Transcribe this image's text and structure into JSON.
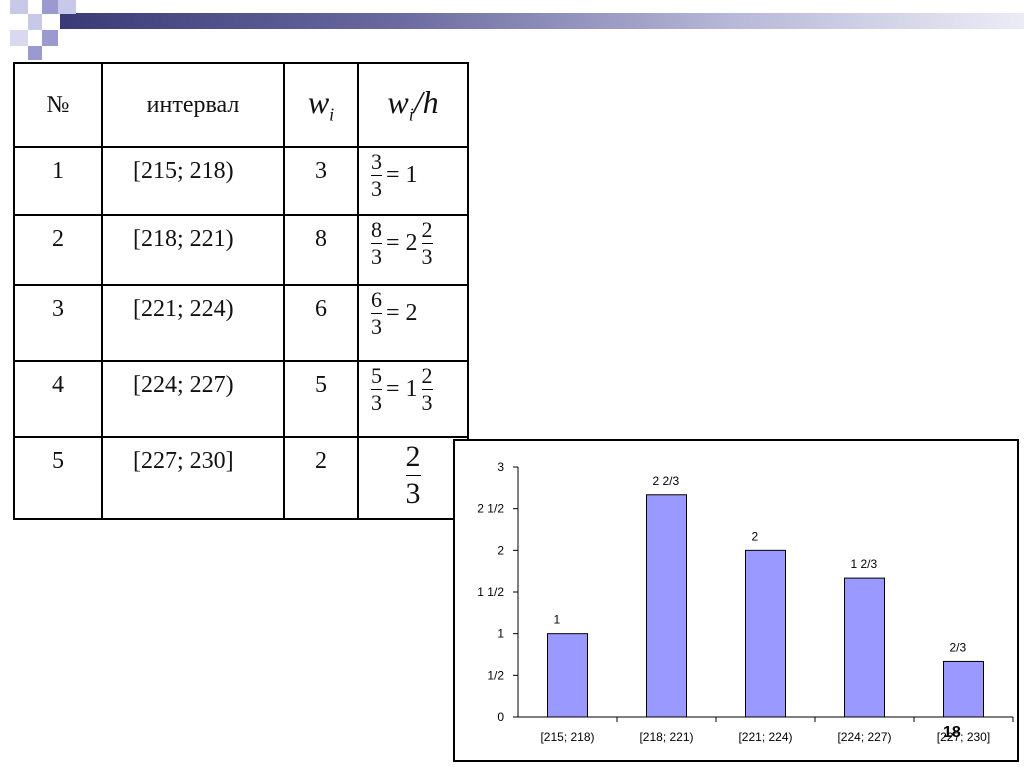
{
  "table": {
    "headers": {
      "num": "№",
      "interval": "интервал",
      "wi": "w",
      "wi_sub": "i",
      "wih_w": "w",
      "wih_sub": "i",
      "wih_h": "/h"
    },
    "rows": [
      {
        "num": "1",
        "interval": "[215; 218)",
        "wi": "3",
        "f_num": "3",
        "f_den": "3",
        "eq": "= 1",
        "mixed_whole": "",
        "mixed_num": "",
        "mixed_den": ""
      },
      {
        "num": "2",
        "interval": "[218; 221)",
        "wi": "8",
        "f_num": "8",
        "f_den": "3",
        "eq": "= 2",
        "mixed_whole": "",
        "mixed_num": "2",
        "mixed_den": "3"
      },
      {
        "num": "3",
        "interval": "[221; 224)",
        "wi": "6",
        "f_num": "6",
        "f_den": "3",
        "eq": "= 2",
        "mixed_whole": "",
        "mixed_num": "",
        "mixed_den": ""
      },
      {
        "num": "4",
        "interval": "[224; 227)",
        "wi": "5",
        "f_num": "5",
        "f_den": "3",
        "eq": "= 1",
        "mixed_whole": "",
        "mixed_num": "2",
        "mixed_den": "3"
      },
      {
        "num": "5",
        "interval": "[227; 230]",
        "wi": "2",
        "f_num": "2",
        "f_den": "3",
        "eq": "",
        "mixed_whole": "",
        "mixed_num": "",
        "mixed_den": ""
      }
    ]
  },
  "chart_data": {
    "type": "bar",
    "categories": [
      "[215; 218)",
      "[218; 221)",
      "[221; 224)",
      "[224; 227)",
      "[227; 230]"
    ],
    "values": [
      1,
      2.6667,
      2,
      1.6667,
      0.6667
    ],
    "data_labels": [
      "1",
      "2 2/3",
      "2",
      "1 2/3",
      "2/3"
    ],
    "y_ticks": [
      0,
      0.5,
      1,
      1.5,
      2,
      2.5,
      3
    ],
    "y_tick_labels": [
      "0",
      "1/2",
      "1",
      "1 1/2",
      "2",
      "2 1/2",
      "3"
    ],
    "ylim": [
      0,
      3
    ],
    "bar_color": "#9999ff",
    "grid": false,
    "title": "",
    "xlabel": "",
    "ylabel": ""
  },
  "page_number": "18",
  "colors": {
    "header_dark": "#3a3a78",
    "header_light": "#ececf6",
    "square_a": "#9a9ad0",
    "square_b": "#c8c8e8"
  }
}
